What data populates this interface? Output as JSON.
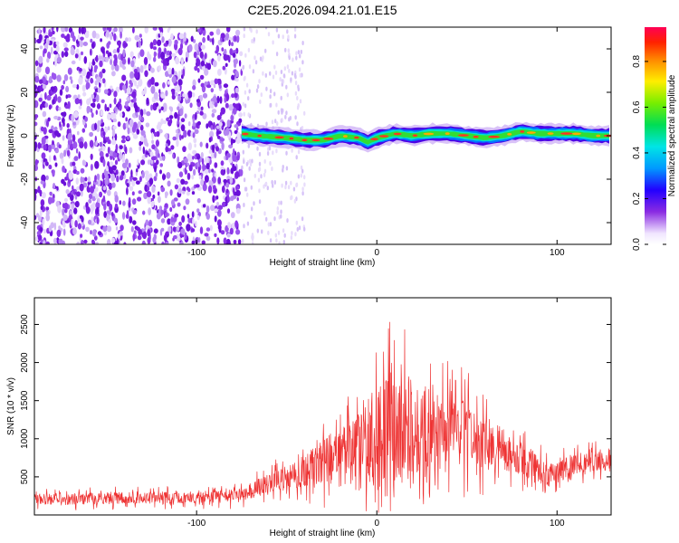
{
  "chart_data": [
    {
      "type": "heatmap",
      "title": "C2E5.2026.094.21.01.E15",
      "xlabel": "Height of straight line (km)",
      "ylabel": "Frequency (Hz)",
      "xlim": [
        -190,
        130
      ],
      "ylim": [
        -50,
        50
      ],
      "xticks": [
        -100,
        0,
        100
      ],
      "yticks": [
        -40,
        -20,
        0,
        20,
        40
      ],
      "colorbar": {
        "label": "Normalized spectral amplitude",
        "range": [
          0,
          0.95
        ],
        "ticks": [
          0.0,
          0.2,
          0.4,
          0.6,
          0.8
        ]
      },
      "noise_region_x": [
        -190,
        -75
      ],
      "trace_center_hz": [
        [
          -75,
          1
        ],
        [
          -65,
          0
        ],
        [
          -50,
          -1
        ],
        [
          -40,
          -2
        ],
        [
          -30,
          -2
        ],
        [
          -20,
          0
        ],
        [
          -10,
          -1
        ],
        [
          -5,
          -3
        ],
        [
          0,
          -1
        ],
        [
          10,
          1
        ],
        [
          20,
          0
        ],
        [
          30,
          1
        ],
        [
          40,
          1
        ],
        [
          50,
          0
        ],
        [
          60,
          -1
        ],
        [
          70,
          0
        ],
        [
          80,
          2
        ],
        [
          90,
          1
        ],
        [
          100,
          1
        ],
        [
          110,
          1
        ],
        [
          120,
          0
        ],
        [
          130,
          0
        ]
      ]
    },
    {
      "type": "line",
      "title": "",
      "xlabel": "Height of straight line (km)",
      "ylabel": "SNR (10 * v/v)",
      "xlim": [
        -190,
        130
      ],
      "ylim": [
        0,
        2850
      ],
      "xticks": [
        -100,
        0,
        100
      ],
      "yticks": [
        500,
        1000,
        1500,
        2000,
        2500
      ],
      "series": [
        {
          "name": "SNR",
          "color": "#ee3333",
          "envelope": [
            {
              "x": -190,
              "base": 200,
              "spread": 150
            },
            {
              "x": -150,
              "base": 220,
              "spread": 150
            },
            {
              "x": -100,
              "base": 230,
              "spread": 150
            },
            {
              "x": -75,
              "base": 260,
              "spread": 180
            },
            {
              "x": -60,
              "base": 420,
              "spread": 260
            },
            {
              "x": -45,
              "base": 520,
              "spread": 350
            },
            {
              "x": -30,
              "base": 700,
              "spread": 600
            },
            {
              "x": -15,
              "base": 800,
              "spread": 900
            },
            {
              "x": -5,
              "base": 900,
              "spread": 1300
            },
            {
              "x": 5,
              "base": 1000,
              "spread": 1600
            },
            {
              "x": 20,
              "base": 1100,
              "spread": 1450
            },
            {
              "x": 40,
              "base": 1150,
              "spread": 1000
            },
            {
              "x": 60,
              "base": 950,
              "spread": 700
            },
            {
              "x": 80,
              "base": 750,
              "spread": 450
            },
            {
              "x": 95,
              "base": 520,
              "spread": 300
            },
            {
              "x": 110,
              "base": 650,
              "spread": 300
            },
            {
              "x": 130,
              "base": 750,
              "spread": 300
            }
          ]
        }
      ]
    }
  ]
}
